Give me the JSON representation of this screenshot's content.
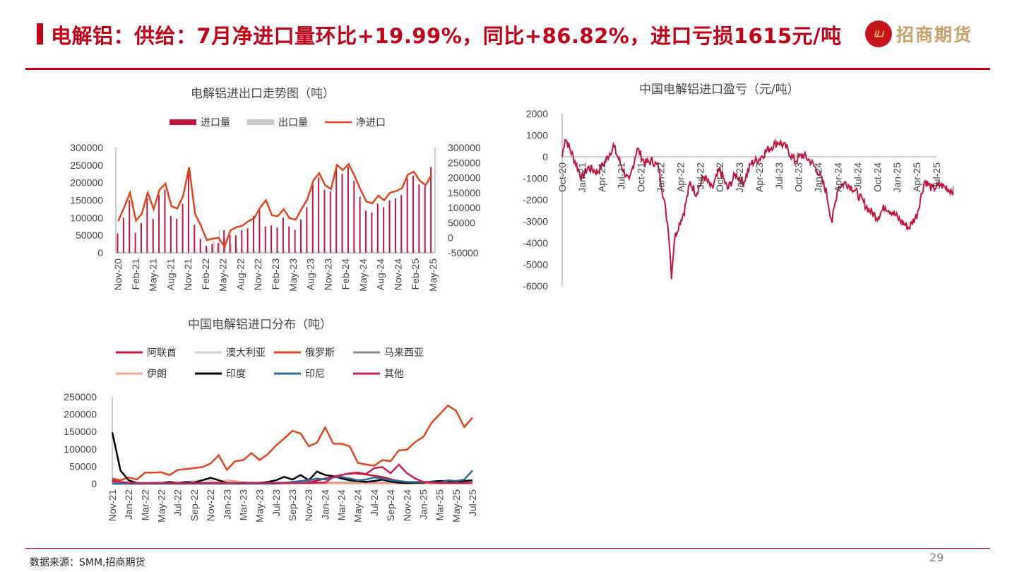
{
  "header": {
    "title": "电解铝：供给：7月净进口量环比+19.99%，同比+86.82%，进口亏损1615元/吨",
    "logo_mark": "ய",
    "logo_text": "招商期货"
  },
  "footer": {
    "source": "数据来源：SMM,招商期货",
    "page": "29"
  },
  "colors": {
    "brand_red": "#c00018",
    "import": "#c0143c",
    "export": "#c8c8c8",
    "net": "#e0461e"
  },
  "chart_data": [
    {
      "id": "trade",
      "type": "bar",
      "title": "电解铝进出口走势图（吨）",
      "legend": [
        "进口量",
        "出口量",
        "净进口"
      ],
      "x_tick_labels": [
        "Nov-20",
        "Feb-21",
        "May-21",
        "Aug-21",
        "Nov-21",
        "Feb-22",
        "May-22",
        "Aug-22",
        "Nov-22",
        "Feb-23",
        "May-23",
        "Aug-23",
        "Nov-23",
        "Feb-24",
        "May-24",
        "Aug-24",
        "Nov-24",
        "Feb-25",
        "May-25"
      ],
      "left_ticks": [
        "0",
        "50000",
        "100000",
        "150000",
        "200000",
        "250000",
        "300000"
      ],
      "right_ticks": [
        "-50000",
        "0",
        "50000",
        "100000",
        "150000",
        "200000",
        "250000",
        "300000"
      ],
      "ylim_left": [
        0,
        300000
      ],
      "ylim_right": [
        -50000,
        300000
      ],
      "imports": [
        55000,
        100000,
        150000,
        57000,
        85000,
        155000,
        97000,
        165000,
        180000,
        105000,
        97000,
        140000,
        235000,
        80000,
        40000,
        20000,
        25000,
        28000,
        65000,
        50000,
        50000,
        65000,
        70000,
        105000,
        128000,
        75000,
        78000,
        72000,
        100000,
        75000,
        65000,
        95000,
        130000,
        195000,
        215000,
        180000,
        175000,
        243000,
        225000,
        245000,
        205000,
        160000,
        120000,
        115000,
        140000,
        130000,
        150000,
        155000,
        165000,
        212000,
        220000,
        195000,
        190000,
        245000
      ],
      "exports": [
        4000,
        3000,
        3000,
        3000,
        3000,
        3000,
        3000,
        3000,
        3000,
        3000,
        3000,
        3000,
        3000,
        3000,
        5000,
        15000,
        35000,
        65000,
        40000,
        25000,
        15000,
        8000,
        5000,
        5000,
        5000,
        5000,
        5000,
        5000,
        5000,
        5000,
        5000,
        5000,
        5000,
        5000,
        5000,
        5000,
        5000,
        5000,
        5000,
        5000,
        5000,
        5000,
        5000,
        5000,
        5000,
        5000,
        5000,
        5000,
        5000,
        5000,
        5000,
        5000,
        5000,
        5000
      ],
      "net": [
        55000,
        100000,
        150000,
        57000,
        80000,
        150000,
        95000,
        160000,
        180000,
        105000,
        97000,
        140000,
        235000,
        80000,
        40000,
        -8000,
        -3000,
        0,
        -30000,
        25000,
        35000,
        40000,
        55000,
        65000,
        100000,
        125000,
        75000,
        72000,
        95000,
        65000,
        60000,
        95000,
        128000,
        190000,
        215000,
        175000,
        162000,
        243000,
        225000,
        245000,
        205000,
        160000,
        120000,
        115000,
        140000,
        125000,
        150000,
        155000,
        165000,
        210000,
        220000,
        190000,
        175000,
        210000
      ]
    },
    {
      "id": "profit",
      "type": "line",
      "title": "中国电解铝进口盈亏（元/吨）",
      "x_tick_labels": [
        "Oct-20",
        "Jan-21",
        "Apr-21",
        "Jul-21",
        "Oct-21",
        "Jan-22",
        "Apr-22",
        "Jul-22",
        "Oct-22",
        "Jan-23",
        "Apr-23",
        "Jul-23",
        "Oct-23",
        "Jan-24",
        "Apr-24",
        "Jul-24",
        "Oct-24",
        "Jan-25",
        "Apr-25",
        "Jul-25"
      ],
      "y_ticks": [
        "2000",
        "1000",
        "0",
        "-1000",
        "-2000",
        "-3000",
        "-4000",
        "-5000",
        "-6000"
      ],
      "ylim": [
        -6000,
        2000
      ],
      "anchors": [
        [
          0,
          0
        ],
        [
          0.15,
          900
        ],
        [
          0.6,
          -100
        ],
        [
          1.0,
          -1000
        ],
        [
          1.3,
          -500
        ],
        [
          1.8,
          -700
        ],
        [
          2.2,
          -200
        ],
        [
          2.6,
          500
        ],
        [
          3.0,
          -400
        ],
        [
          3.4,
          -1200
        ],
        [
          3.8,
          400
        ],
        [
          4.2,
          -300
        ],
        [
          4.6,
          -200
        ],
        [
          4.9,
          -500
        ],
        [
          5.2,
          -2200
        ],
        [
          5.4,
          -3400
        ],
        [
          5.55,
          -5500
        ],
        [
          5.7,
          -3800
        ],
        [
          5.9,
          -3200
        ],
        [
          6.2,
          -2500
        ],
        [
          6.5,
          -1200
        ],
        [
          6.8,
          -1700
        ],
        [
          7.2,
          -900
        ],
        [
          7.6,
          -1500
        ],
        [
          8.0,
          -600
        ],
        [
          8.4,
          -1500
        ],
        [
          8.8,
          -800
        ],
        [
          9.2,
          -1200
        ],
        [
          9.6,
          -300
        ],
        [
          10.0,
          -100
        ],
        [
          10.4,
          300
        ],
        [
          10.8,
          600
        ],
        [
          11.0,
          700
        ],
        [
          11.4,
          400
        ],
        [
          11.8,
          -200
        ],
        [
          12.2,
          100
        ],
        [
          12.6,
          -200
        ],
        [
          13.0,
          -700
        ],
        [
          13.4,
          -1600
        ],
        [
          13.6,
          -2600
        ],
        [
          13.7,
          -3000
        ],
        [
          14.0,
          -1400
        ],
        [
          14.4,
          -1200
        ],
        [
          14.8,
          -1500
        ],
        [
          15.2,
          -2000
        ],
        [
          15.6,
          -2500
        ],
        [
          16.0,
          -2800
        ],
        [
          16.4,
          -2300
        ],
        [
          16.8,
          -2600
        ],
        [
          17.2,
          -3000
        ],
        [
          17.6,
          -3300
        ],
        [
          18.0,
          -2700
        ],
        [
          18.4,
          -1100
        ],
        [
          18.8,
          -1500
        ],
        [
          19.2,
          -1300
        ],
        [
          19.6,
          -1500
        ],
        [
          20.0,
          -1615
        ]
      ]
    },
    {
      "id": "origin",
      "type": "line",
      "title": "中国电解铝进口分布（吨）",
      "x_tick_labels": [
        "Nov-21",
        "Jan-22",
        "Mar-22",
        "May-22",
        "Jul-22",
        "Sep-22",
        "Nov-22",
        "Jan-23",
        "Mar-23",
        "May-23",
        "Jul-23",
        "Sep-23",
        "Nov-23",
        "Jan-24",
        "Mar-24",
        "May-24",
        "Jul-24",
        "Sep-24",
        "Nov-24",
        "Jan-25",
        "Mar-25",
        "May-25",
        "Jul-25"
      ],
      "y_ticks": [
        "250000",
        "200000",
        "150000",
        "100000",
        "50000",
        "0"
      ],
      "ylim": [
        0,
        250000
      ],
      "series": [
        {
          "name": "阿联酋",
          "color": "#c0143c",
          "values": [
            5000,
            3000,
            2000,
            1000,
            1000,
            1000,
            1000,
            1000,
            1000,
            1000,
            1000,
            1000,
            1000,
            1000,
            1000,
            1000,
            1000,
            1000,
            1000,
            1000,
            1000,
            2000,
            2000,
            2000,
            3000,
            3000,
            3000,
            5000,
            10000,
            15000,
            20000,
            25000,
            28000,
            30000,
            28000,
            25000,
            22000,
            18000,
            12000,
            8000,
            5000,
            3000,
            2000,
            2000,
            2000,
            2000,
            2000,
            3000,
            2000,
            1000
          ]
        },
        {
          "name": "澳大利亚",
          "color": "#cfcfcf",
          "values": [
            0,
            0,
            0,
            0,
            0,
            0,
            0,
            0,
            0,
            2000,
            5000,
            8000,
            10000,
            12000,
            5000,
            2000,
            1000,
            1000,
            1000,
            1000,
            1000,
            1000,
            1000,
            1000,
            1000,
            1000,
            1000,
            1000,
            1000,
            1000,
            1000,
            1000,
            1000,
            1000,
            1000,
            1000,
            1000,
            1000,
            1000,
            1000,
            1000,
            1000,
            1000,
            1000,
            1000,
            1000,
            1000,
            1000,
            1000,
            1000
          ]
        },
        {
          "name": "俄罗斯",
          "color": "#e0461e",
          "values": [
            15000,
            10000,
            18000,
            12000,
            32000,
            32000,
            33000,
            25000,
            40000,
            42000,
            45000,
            48000,
            58000,
            82000,
            40000,
            65000,
            68000,
            88000,
            68000,
            85000,
            110000,
            130000,
            152000,
            145000,
            108000,
            118000,
            162000,
            115000,
            115000,
            108000,
            60000,
            55000,
            52000,
            68000,
            65000,
            96000,
            98000,
            120000,
            135000,
            175000,
            200000,
            225000,
            210000,
            163000,
            190000
          ]
        },
        {
          "name": "马来西亚",
          "color": "#8c8c8c",
          "values": [
            2000,
            2000,
            2000,
            2000,
            2000,
            2000,
            2000,
            2000,
            2000,
            3000,
            3000,
            3000,
            3000,
            3000,
            3000,
            3000,
            3000,
            3000,
            3000,
            3000,
            3000,
            3000,
            3000,
            3000,
            3000,
            3000,
            3000,
            3000,
            3000,
            3000,
            3000,
            3000,
            3000,
            3000,
            3000,
            3000,
            3000,
            3000,
            3000,
            3000,
            3000,
            3000,
            3000,
            3000,
            3000
          ]
        },
        {
          "name": "伊朗",
          "color": "#f4a48a",
          "values": [
            0,
            0,
            0,
            0,
            0,
            0,
            0,
            0,
            0,
            0,
            0,
            2000,
            3000,
            5000,
            10000,
            8000,
            3000,
            1000,
            1000,
            1000,
            1000,
            1000,
            1000,
            1000,
            1000,
            1000,
            1000,
            1000,
            1000,
            1000,
            1000,
            1000,
            1000,
            1000,
            1000,
            1000,
            1000,
            1000,
            1000,
            1000,
            1000,
            1000,
            1000,
            1000,
            1000
          ]
        },
        {
          "name": "印度",
          "color": "#000000",
          "values": [
            148000,
            38000,
            10000,
            2000,
            1000,
            2000,
            2000,
            5000,
            2000,
            5000,
            3000,
            10000,
            17000,
            10000,
            2000,
            1000,
            3000,
            1000,
            2000,
            5000,
            10000,
            20000,
            12000,
            25000,
            10000,
            35000,
            25000,
            22000,
            15000,
            10000,
            8000,
            5000,
            8000,
            12000,
            6000,
            3000,
            2000,
            3000,
            3000,
            6000,
            8000,
            8000,
            5000,
            8000,
            10000
          ]
        },
        {
          "name": "印尼",
          "color": "#2e6a9c",
          "values": [
            0,
            0,
            0,
            0,
            0,
            0,
            0,
            0,
            0,
            0,
            0,
            0,
            0,
            0,
            0,
            0,
            0,
            0,
            0,
            0,
            0,
            2000,
            5000,
            8000,
            10000,
            15000,
            12000,
            18000,
            20000,
            15000,
            10000,
            12000,
            18000,
            15000,
            10000,
            8000,
            5000,
            5000,
            5000,
            5000,
            3000,
            10000,
            8000,
            12000,
            38000
          ]
        },
        {
          "name": "其他",
          "color": "#c81e50",
          "values": [
            10000,
            5000,
            3000,
            2000,
            2000,
            2000,
            2000,
            2000,
            2000,
            2000,
            2000,
            2000,
            2000,
            2000,
            2000,
            2000,
            2000,
            2000,
            2000,
            2000,
            2000,
            2000,
            2000,
            2000,
            2000,
            3000,
            3000,
            20000,
            25000,
            30000,
            32000,
            28000,
            45000,
            48000,
            30000,
            55000,
            30000,
            15000,
            5000,
            3000,
            2000,
            2000,
            2000,
            2000,
            3000
          ]
        }
      ]
    }
  ]
}
